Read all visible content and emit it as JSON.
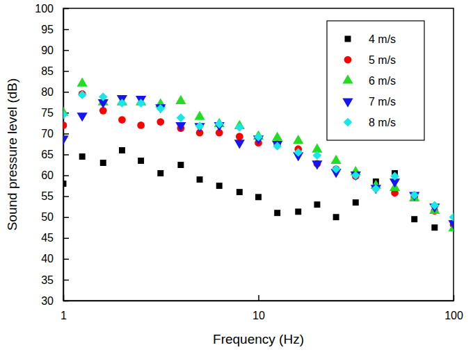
{
  "chart_data": {
    "type": "scatter",
    "x_label": "Frequency (Hz)",
    "y_label": "Sound pressure level (dB)",
    "log": "x",
    "legend": "upper right",
    "xlim": [
      1,
      100
    ],
    "ylim": [
      30,
      100
    ],
    "xticks": [
      1,
      10,
      100
    ],
    "yticks": [
      30,
      35,
      40,
      45,
      50,
      55,
      60,
      65,
      70,
      75,
      80,
      85,
      90,
      95,
      100
    ],
    "x": [
      1,
      1.25,
      1.6,
      2,
      2.5,
      3.15,
      4,
      5,
      6.3,
      8,
      10,
      12.5,
      16,
      20,
      25,
      31.5,
      40,
      50,
      63,
      80,
      100
    ],
    "series": [
      {
        "name": "4 m/s",
        "color": "#000000",
        "marker": "square",
        "values": [
          58,
          64.5,
          63,
          66,
          63.5,
          60.5,
          62.5,
          59,
          57.5,
          56,
          54.8,
          51,
          51.3,
          53,
          50,
          53.5,
          58.5,
          60.5,
          49.5,
          47.5,
          48.5
        ]
      },
      {
        "name": "5 m/s",
        "color": "#ff0000",
        "marker": "circle",
        "values": [
          72,
          79.5,
          75.5,
          73.3,
          72,
          72.8,
          71.3,
          70.2,
          70.2,
          69.3,
          67.8,
          67.5,
          66.3,
          62.8,
          61.5,
          59.8,
          57,
          55.8,
          54.8,
          51.5,
          48.2
        ]
      },
      {
        "name": "6 m/s",
        "color": "#22dd22",
        "marker": "triangle-up",
        "values": [
          75,
          82,
          77.5,
          77.5,
          77.5,
          77,
          77.8,
          74,
          72.3,
          71.8,
          69.3,
          69,
          68.3,
          66.2,
          63.5,
          60.8,
          57.5,
          57,
          54.5,
          51.5,
          47.3
        ]
      },
      {
        "name": "7 m/s",
        "color": "#1515f0",
        "marker": "triangle-down",
        "values": [
          68.8,
          74.3,
          77.5,
          78.5,
          78.3,
          76.3,
          72,
          71.8,
          72,
          67.8,
          68.8,
          67.5,
          64.8,
          62.8,
          60.8,
          60.2,
          57,
          58.5,
          55.3,
          52.5,
          48.5
        ]
      },
      {
        "name": "8 m/s",
        "color": "#19e6e6",
        "marker": "diamond",
        "values": [
          74.5,
          79.3,
          78.8,
          77.3,
          77.3,
          76,
          73.8,
          71.8,
          72.3,
          71.5,
          69.2,
          67,
          65.5,
          64.8,
          61.5,
          60,
          56.8,
          59.8,
          55.3,
          52.8,
          50
        ]
      }
    ]
  }
}
